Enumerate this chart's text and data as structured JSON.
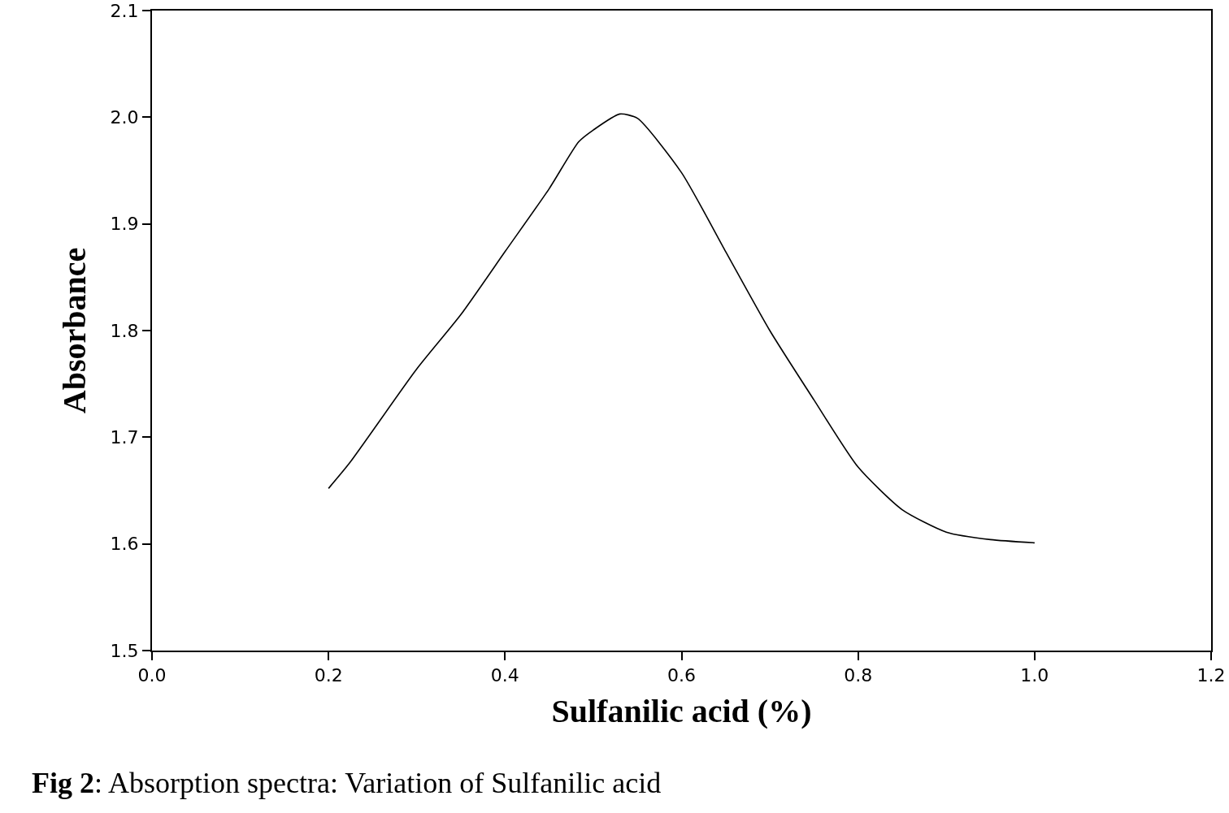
{
  "chart_data": {
    "type": "line",
    "xlabel": "Sulfanilic acid (%)",
    "ylabel": "Absorbance",
    "annotations": [
      "Fig 2: Absorption spectra: Variation of Sulfanilic acid"
    ],
    "series": [
      {
        "color": "#000000",
        "x": [
          0.2,
          0.224,
          0.3,
          0.35,
          0.4,
          0.45,
          0.4835,
          0.5,
          0.53,
          0.55,
          0.6,
          0.65,
          0.7,
          0.75,
          0.8,
          0.85,
          0.9,
          0.95,
          1.0
        ],
        "values": [
          1.652,
          1.676,
          1.764,
          1.815,
          1.874,
          1.933,
          1.977,
          1.988,
          2.003,
          1.999,
          1.948,
          1.874,
          1.8,
          1.735,
          1.672,
          1.632,
          1.611,
          1.604,
          1.601
        ]
      }
    ],
    "xlim": [
      0,
      1.2
    ],
    "ylim": [
      1.5,
      2.1
    ],
    "xticks": [
      {
        "value": 0,
        "label": "0.0"
      },
      0.2,
      0.4,
      0.6,
      0.8,
      {
        "value": 1,
        "label": "1.0"
      },
      1.2
    ],
    "yticks": [
      1.5,
      1.6,
      1.7,
      1.8,
      1.9,
      {
        "value": 2,
        "label": "2.0"
      },
      2.1
    ],
    "grid": false,
    "marker": "none",
    "line_style": "solid"
  }
}
